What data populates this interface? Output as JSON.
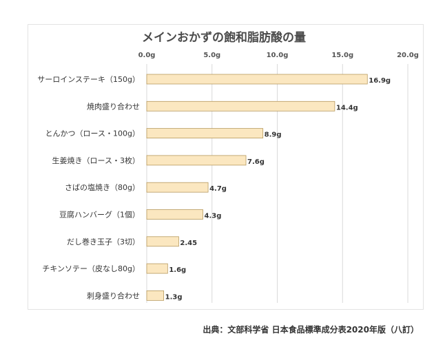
{
  "chart_data": {
    "type": "bar",
    "orientation": "horizontal",
    "title": "メインおかずの飽和脂肪酸の量",
    "xlabel": "",
    "ylabel": "",
    "xlim": [
      0,
      20
    ],
    "ticks": [
      "0.0g",
      "5.0g",
      "10.0g",
      "15.0g",
      "20.0g"
    ],
    "grid": true,
    "categories": [
      "サーロインステーキ（150g）",
      "焼肉盛り合わせ",
      "とんかつ（ロース・100g）",
      "生姜焼き（ロース・3枚）",
      "さばの塩焼き（80g）",
      "豆腐ハンバーグ（1個）",
      "だし巻き玉子（3切）",
      "チキンソテー（皮なし80g）",
      "刺身盛り合わせ"
    ],
    "values": [
      16.9,
      14.4,
      8.9,
      7.6,
      4.7,
      4.3,
      2.45,
      1.6,
      1.3
    ],
    "value_labels": [
      "16.9g",
      "14.4g",
      "8.9g",
      "7.6g",
      "4.7g",
      "4.3g",
      "2.45",
      "1.6g",
      "1.3g"
    ],
    "colors": {
      "bar_fill": "#fbe7c0",
      "bar_stroke": "#b79a5e",
      "grid": "#d9d9d9"
    }
  },
  "source": "出典：文部科学省 日本食品標準成分表2020年版（八訂）"
}
